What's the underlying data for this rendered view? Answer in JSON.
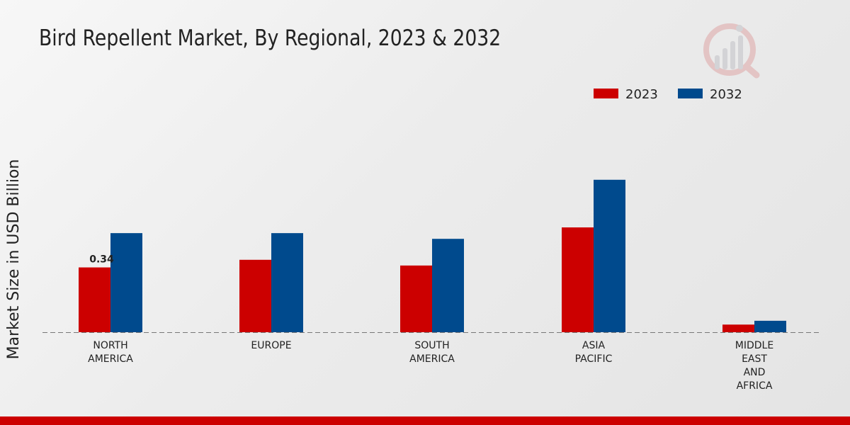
{
  "chart_data": {
    "type": "bar",
    "title": "Bird Repellent Market, By Regional, 2023 & 2032",
    "xlabel": "",
    "ylabel": "Market Size in USD Billion",
    "ylim": [
      0,
      1.0
    ],
    "categories": [
      [
        "NORTH",
        "AMERICA"
      ],
      [
        "EUROPE"
      ],
      [
        "SOUTH",
        "AMERICA"
      ],
      [
        "ASIA",
        "PACIFIC"
      ],
      [
        "MIDDLE",
        "EAST",
        "AND",
        "AFRICA"
      ]
    ],
    "series": [
      {
        "name": "2023",
        "color": "#cc0000",
        "values": [
          0.34,
          0.38,
          0.35,
          0.55,
          0.04
        ]
      },
      {
        "name": "2032",
        "color": "#004a8d",
        "values": [
          0.52,
          0.52,
          0.49,
          0.8,
          0.06
        ]
      }
    ],
    "data_labels": [
      {
        "series": 0,
        "index": 0,
        "text": "0.34"
      }
    ],
    "legend": "top-right",
    "grid": false
  }
}
